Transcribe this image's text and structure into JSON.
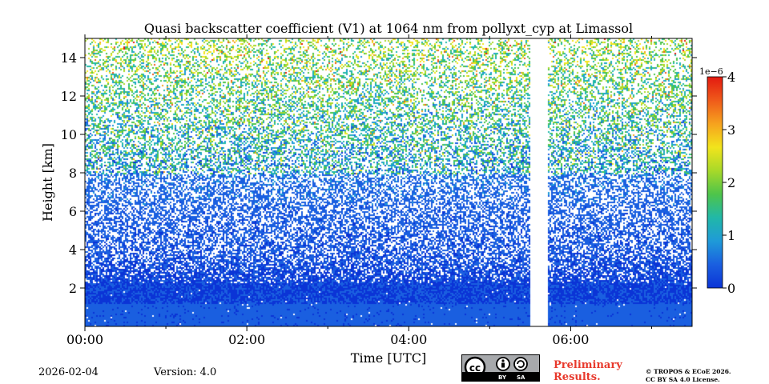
{
  "chart_data": {
    "type": "heatmap",
    "title": "Quasi backscatter coefficient (V1) at 1064 nm from pollyxt_cyp at Limassol",
    "xlabel": "Time [UTC]",
    "ylabel": "Height [km]",
    "x_range_hours": [
      0,
      7.5
    ],
    "y_range_km": [
      0,
      15
    ],
    "x_ticks": [
      {
        "value": 0,
        "label": "00:00"
      },
      {
        "value": 2,
        "label": "02:00"
      },
      {
        "value": 4,
        "label": "04:00"
      },
      {
        "value": 6,
        "label": "06:00"
      }
    ],
    "y_ticks": [
      2,
      4,
      6,
      8,
      10,
      12,
      14
    ],
    "data_gap_hours": [
      5.5,
      5.7
    ],
    "colorbar": {
      "range": [
        0,
        4
      ],
      "ticks": [
        0,
        1,
        2,
        3,
        4
      ],
      "exponent_label": "1e−6",
      "colors": [
        "#0b34d6",
        "#1a5fe0",
        "#1f9ad8",
        "#21b8a8",
        "#4ec44a",
        "#a8d929",
        "#f2e41c",
        "#f6a21e",
        "#ef5a1a",
        "#e31a10"
      ]
    }
  },
  "footer": {
    "date": "2026-02-04",
    "version": "Version: 4.0",
    "preliminary_line1": "Preliminary",
    "preliminary_line2": "Results.",
    "license_line1": "© TROPOS & ECoE 2026.",
    "license_line2": "CC BY SA 4.0 License.",
    "cc_by": "BY",
    "cc_sa": "SA"
  }
}
